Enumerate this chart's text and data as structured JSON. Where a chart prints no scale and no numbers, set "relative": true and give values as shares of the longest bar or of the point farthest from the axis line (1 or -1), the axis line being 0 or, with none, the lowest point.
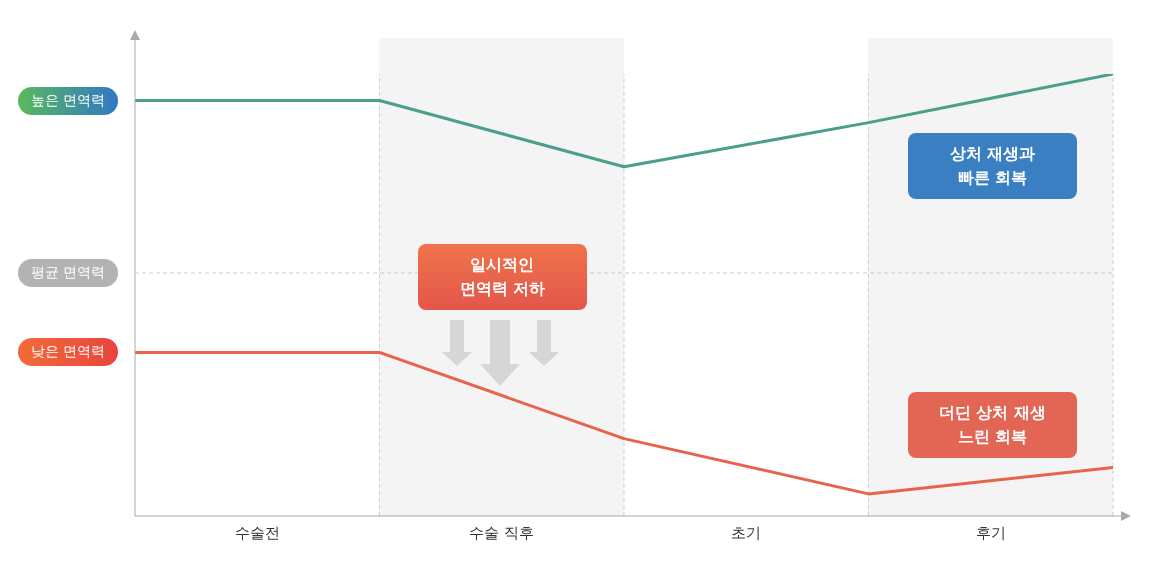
{
  "chart_data": {
    "type": "line",
    "relative": true,
    "categories": [
      null,
      null,
      null,
      null,
      null
    ],
    "series": [
      {
        "color": "#4a9e8c",
        "values": [
          0.94,
          0.94,
          0.79,
          0.89,
          1
        ]
      },
      {
        "color": "#e8634a",
        "values": [
          0.37,
          0.37,
          0.175,
          0.05,
          0.11
        ]
      }
    ],
    "ref_lines": [
      {
        "axis": "y",
        "value": 0.55,
        "label": "평균 면역력",
        "color": "#cccccc",
        "line_style": "dashed"
      }
    ],
    "annotations": [
      "높은 면역력",
      "낮은 면역력",
      "수술전",
      "수술 직후",
      "초기",
      "후기",
      "일시적인\n면역력 저하",
      "상처 재생과\n빠른 회복",
      "더딘 상처 재생\n느린 회복"
    ],
    "grid": "x",
    "legend": false,
    "marker": "none",
    "line_style": "solid"
  }
}
